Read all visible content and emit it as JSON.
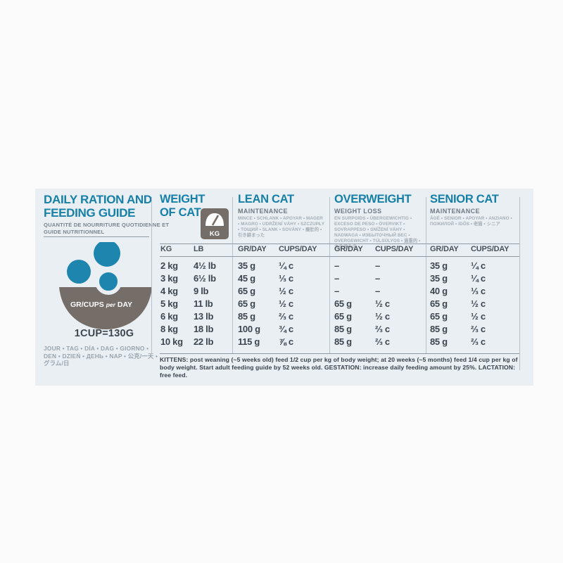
{
  "colors": {
    "teal_heading": "#1780a8",
    "dark_text": "#3d464e",
    "muted_gray": "#6f7982",
    "light_gray": "#a5aeb6",
    "icon_gray": "#756e68",
    "kibble_blue": "#1e85af",
    "panel_bg": "#e9eff3",
    "line": "#8f99a2"
  },
  "left_panel": {
    "title": "DAILY RATION AND FEEDING GUIDE",
    "subtitle": "QUANTITÉ DE NOURRITURE QUOTIDIENNE ET GUIDE NUTRITIONNEL",
    "bowl_label_pre": "GR/CUPS",
    "bowl_label_per": "per",
    "bowl_label_post": "DAY",
    "cup_equivalence": "1CUP=130G",
    "languages": "JOUR • TAG • DÍA • DAG • GIORNO • DEN • DZIEŃ • ДЕНЬ • NAP • 公克/一天 • グラム/日"
  },
  "weight_section": {
    "title_line1": "WEIGHT",
    "title_line2": "OF CAT",
    "scale_icon_label": "KG",
    "col1": "KG",
    "col2": "LB",
    "rows": [
      [
        "2 kg",
        "4½ lb"
      ],
      [
        "3 kg",
        "6½ lb"
      ],
      [
        "4 kg",
        "9 lb"
      ],
      [
        "5 kg",
        "11 lb"
      ],
      [
        "6 kg",
        "13 lb"
      ],
      [
        "8 kg",
        "18 lb"
      ],
      [
        "10 kg",
        "22 lb"
      ]
    ]
  },
  "diet_sections": [
    {
      "title": "LEAN CAT",
      "subtitle": "MAINTENANCE",
      "languages": "MINCE • SCHLANK • APOYAR • MAGER • MAGRO • UDRŽENÍ VÁHY • SZCZUPŁY • ТОЩИЙ • SLANK • SOVÁNY • 瘦肚的 • 引き締まった",
      "col1": "GR/DAY",
      "col2": "CUPS/DAY",
      "rows": [
        [
          "35 g",
          "¼ c"
        ],
        [
          "45 g",
          "⅓ c"
        ],
        [
          "65 g",
          "½ c"
        ],
        [
          "65 g",
          "½ c"
        ],
        [
          "85 g",
          "⅔ c"
        ],
        [
          "100 g",
          "¾ c"
        ],
        [
          "115 g",
          "⅞ c"
        ]
      ]
    },
    {
      "title": "OVERWEIGHT",
      "subtitle": "WEIGHT LOSS",
      "languages": "EN SURPOIDS • ÜBERGEWICHTIG • EXCESO DE PESO • ÖVERVIKT • SOVRAPPESO • SNÍŽENÍ VÁHY • NADWAGA • ИЗБЫТОЧНЫЙ ВЕС • OVERGEWICHT • TÚLSÚLYOS • 過重的 • 太りぎみの",
      "col1": "GR/DAY",
      "col2": "CUPS/DAY",
      "rows": [
        [
          "–",
          "–"
        ],
        [
          "–",
          "–"
        ],
        [
          "–",
          "–"
        ],
        [
          "65 g",
          "½ c"
        ],
        [
          "65 g",
          "½ c"
        ],
        [
          "85 g",
          "⅔ c"
        ],
        [
          "85 g",
          "⅔ c"
        ]
      ]
    },
    {
      "title": "SENIOR CAT",
      "subtitle": "MAINTENANCE",
      "languages": "ÂGÉ • SENIOR • APOYAR • ANZIANO • ПОЖИЛОЙ • IDŐS • 老猫 • シニア",
      "col1": "GR/DAY",
      "col2": "CUPS/DAY",
      "rows": [
        [
          "35 g",
          "¼ c"
        ],
        [
          "35 g",
          "¼ c"
        ],
        [
          "40 g",
          "⅓ c"
        ],
        [
          "65 g",
          "½ c"
        ],
        [
          "65 g",
          "½ c"
        ],
        [
          "85 g",
          "⅔ c"
        ],
        [
          "85 g",
          "⅔ c"
        ]
      ]
    }
  ],
  "footnote": "KITTENS: post weaning (~5 weeks old) feed 1/2 cup per kg of body weight; at 20 weeks (~5 months) feed 1/4 cup per kg of body weight. Start adult feeding guide by 52 weeks old. GESTATION: increase daily feeding amount by 25%. LACTATION: free feed."
}
